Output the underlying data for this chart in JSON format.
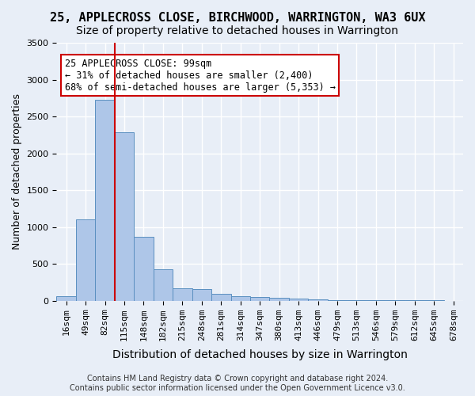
{
  "title1": "25, APPLECROSS CLOSE, BIRCHWOOD, WARRINGTON, WA3 6UX",
  "title2": "Size of property relative to detached houses in Warrington",
  "xlabel": "Distribution of detached houses by size in Warrington",
  "ylabel": "Number of detached properties",
  "bar_values": [
    60,
    1100,
    2730,
    2290,
    870,
    430,
    170,
    160,
    95,
    65,
    55,
    40,
    25,
    20,
    10,
    5,
    3,
    2,
    2,
    2,
    1
  ],
  "bar_labels": [
    "16sqm",
    "49sqm",
    "82sqm",
    "115sqm",
    "148sqm",
    "182sqm",
    "215sqm",
    "248sqm",
    "281sqm",
    "314sqm",
    "347sqm",
    "380sqm",
    "413sqm",
    "446sqm",
    "479sqm",
    "513sqm",
    "546sqm",
    "579sqm",
    "612sqm",
    "645sqm",
    "678sqm"
  ],
  "bar_color": "#aec6e8",
  "bar_edge_color": "#5a8fc0",
  "bar_width": 1.0,
  "vline_color": "#cc0000",
  "annotation_text": "25 APPLECROSS CLOSE: 99sqm\n← 31% of detached houses are smaller (2,400)\n68% of semi-detached houses are larger (5,353) →",
  "annotation_box_color": "#ffffff",
  "annotation_box_edge": "#cc0000",
  "ylim": [
    0,
    3500
  ],
  "yticks": [
    0,
    500,
    1000,
    1500,
    2000,
    2500,
    3000,
    3500
  ],
  "bg_color": "#e8eef7",
  "grid_color": "#ffffff",
  "footer": "Contains HM Land Registry data © Crown copyright and database right 2024.\nContains public sector information licensed under the Open Government Licence v3.0.",
  "title1_fontsize": 11,
  "title2_fontsize": 10,
  "axis_fontsize": 9,
  "tick_fontsize": 8
}
